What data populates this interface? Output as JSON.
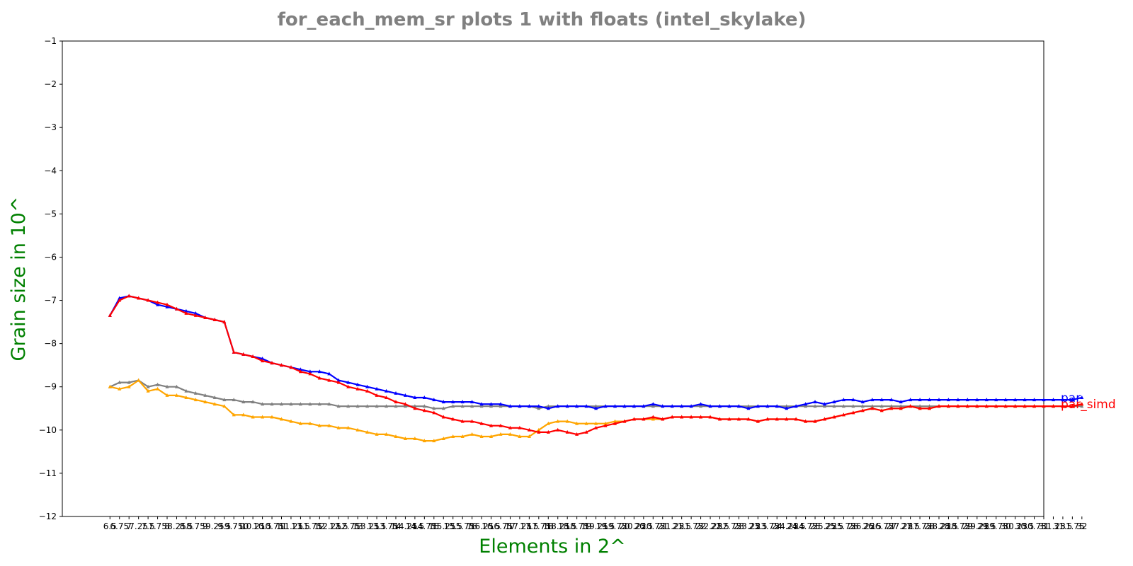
{
  "chart_data": {
    "type": "line",
    "title": "for_each_mem_sr plots 1 with floats  (intel_skylake)",
    "xlabel": "Elements in 2^",
    "ylabel": "Grain size in 10^",
    "ylim": [
      -12,
      -1
    ],
    "yticks": [
      "-1",
      "-2",
      "-3",
      "-4",
      "-5",
      "-6",
      "-7",
      "-8",
      "-9",
      "-10",
      "-11",
      "-12"
    ],
    "xlim": [
      5.25,
      31.0
    ],
    "x_start": 6.5,
    "x_step": 0.25,
    "x_count": 103,
    "grid": false,
    "legend": "right-outside",
    "series": [
      {
        "name": "par",
        "color": "#0000ff",
        "values": [
          -7.35,
          -6.95,
          -6.9,
          -6.95,
          -7.0,
          -7.1,
          -7.15,
          -7.2,
          -7.25,
          -7.3,
          -7.4,
          -7.45,
          -7.5,
          -8.2,
          -8.25,
          -8.3,
          -8.35,
          -8.45,
          -8.5,
          -8.55,
          -8.6,
          -8.65,
          -8.65,
          -8.7,
          -8.85,
          -8.9,
          -8.95,
          -9.0,
          -9.05,
          -9.1,
          -9.15,
          -9.2,
          -9.25,
          -9.25,
          -9.3,
          -9.35,
          -9.35,
          -9.35,
          -9.35,
          -9.4,
          -9.4,
          -9.4,
          -9.45,
          -9.45,
          -9.45,
          -9.45,
          -9.5,
          -9.45,
          -9.45,
          -9.45,
          -9.45,
          -9.5,
          -9.45,
          -9.45,
          -9.45,
          -9.45,
          -9.45,
          -9.4,
          -9.45,
          -9.45,
          -9.45,
          -9.45,
          -9.4,
          -9.45,
          -9.45,
          -9.45,
          -9.45,
          -9.5,
          -9.45,
          -9.45,
          -9.45,
          -9.5,
          -9.45,
          -9.4,
          -9.35,
          -9.4,
          -9.35,
          -9.3,
          -9.3,
          -9.35,
          -9.3,
          -9.3,
          -9.3,
          -9.35,
          -9.3,
          -9.3,
          -9.3,
          -9.3,
          -9.3,
          -9.3,
          -9.3,
          -9.3,
          -9.3,
          -9.3,
          -9.3,
          -9.3,
          -9.3,
          -9.3,
          -9.3,
          -9.3,
          -9.3,
          -9.3,
          -9.25
        ]
      },
      {
        "name": "par_simd",
        "color": "#ff0000",
        "values": [
          -7.35,
          -7.0,
          -6.9,
          -6.95,
          -7.0,
          -7.05,
          -7.1,
          -7.2,
          -7.3,
          -7.35,
          -7.4,
          -7.45,
          -7.5,
          -8.2,
          -8.25,
          -8.3,
          -8.4,
          -8.45,
          -8.5,
          -8.55,
          -8.65,
          -8.7,
          -8.8,
          -8.85,
          -8.9,
          -9.0,
          -9.05,
          -9.1,
          -9.2,
          -9.25,
          -9.35,
          -9.4,
          -9.5,
          -9.55,
          -9.6,
          -9.7,
          -9.75,
          -9.8,
          -9.8,
          -9.85,
          -9.9,
          -9.9,
          -9.95,
          -9.95,
          -10.0,
          -10.05,
          -10.05,
          -10.0,
          -10.05,
          -10.1,
          -10.05,
          -9.95,
          -9.9,
          -9.85,
          -9.8,
          -9.75,
          -9.75,
          -9.7,
          -9.75,
          -9.7,
          -9.7,
          -9.7,
          -9.7,
          -9.7,
          -9.75,
          -9.75,
          -9.75,
          -9.75,
          -9.8,
          -9.75,
          -9.75,
          -9.75,
          -9.75,
          -9.8,
          -9.8,
          -9.75,
          -9.7,
          -9.65,
          -9.6,
          -9.55,
          -9.5,
          -9.55,
          -9.5,
          -9.5,
          -9.45,
          -9.5,
          -9.5,
          -9.45,
          -9.45,
          -9.45,
          -9.45,
          -9.45,
          -9.45,
          -9.45,
          -9.45,
          -9.45,
          -9.45,
          -9.45,
          -9.45,
          -9.45,
          -9.45,
          -9.45,
          -9.4
        ]
      },
      {
        "name": "",
        "color": "#808080",
        "values": [
          -9.0,
          -8.9,
          -8.9,
          -8.85,
          -9.0,
          -8.95,
          -9.0,
          -9.0,
          -9.1,
          -9.15,
          -9.2,
          -9.25,
          -9.3,
          -9.3,
          -9.35,
          -9.35,
          -9.4,
          -9.4,
          -9.4,
          -9.4,
          -9.4,
          -9.4,
          -9.4,
          -9.4,
          -9.45,
          -9.45,
          -9.45,
          -9.45,
          -9.45,
          -9.45,
          -9.45,
          -9.45,
          -9.45,
          -9.45,
          -9.5,
          -9.5,
          -9.45,
          -9.45,
          -9.45,
          -9.45,
          -9.45,
          -9.45,
          -9.45,
          -9.45,
          -9.45,
          -9.5,
          -9.45,
          -9.45,
          -9.45,
          -9.45,
          -9.45,
          -9.45,
          -9.45,
          -9.45,
          -9.45,
          -9.45,
          -9.45,
          -9.45,
          -9.45,
          -9.45,
          -9.45,
          -9.45,
          -9.45,
          -9.45,
          -9.45,
          -9.45,
          -9.45,
          -9.45,
          -9.45,
          -9.45,
          -9.45,
          -9.45,
          -9.45,
          -9.45,
          -9.45,
          -9.45,
          -9.45,
          -9.45,
          -9.45,
          -9.45,
          -9.45,
          -9.45,
          -9.45,
          -9.45,
          -9.45,
          -9.45,
          -9.45,
          -9.45,
          -9.45,
          -9.45,
          -9.45,
          -9.45,
          -9.45,
          -9.45,
          -9.45,
          -9.45,
          -9.45,
          -9.45,
          -9.45,
          -9.45,
          -9.45,
          -9.45,
          -9.45
        ]
      },
      {
        "name": "",
        "color": "#ffa500",
        "values": [
          -9.0,
          -9.05,
          -9.0,
          -8.85,
          -9.1,
          -9.05,
          -9.2,
          -9.2,
          -9.25,
          -9.3,
          -9.35,
          -9.4,
          -9.45,
          -9.65,
          -9.65,
          -9.7,
          -9.7,
          -9.7,
          -9.75,
          -9.8,
          -9.85,
          -9.85,
          -9.9,
          -9.9,
          -9.95,
          -9.95,
          -10.0,
          -10.05,
          -10.1,
          -10.1,
          -10.15,
          -10.2,
          -10.2,
          -10.25,
          -10.25,
          -10.2,
          -10.15,
          -10.15,
          -10.1,
          -10.15,
          -10.15,
          -10.1,
          -10.1,
          -10.15,
          -10.15,
          -10.0,
          -9.85,
          -9.8,
          -9.8,
          -9.85,
          -9.85,
          -9.85,
          -9.85,
          -9.8,
          -9.8,
          -9.75,
          -9.75,
          -9.75,
          -9.75,
          -9.7,
          -9.7,
          -9.7,
          -9.7,
          -9.7,
          -9.75,
          -9.75,
          -9.75,
          -9.75,
          -9.8,
          -9.75,
          -9.75,
          -9.75,
          -9.75,
          -9.8,
          -9.8,
          -9.75,
          -9.7,
          -9.65,
          -9.6,
          -9.55,
          -9.5,
          -9.55,
          -9.5,
          -9.5,
          -9.45,
          -9.5,
          -9.5,
          -9.45,
          -9.45,
          -9.45,
          -9.45,
          -9.45,
          -9.45,
          -9.45,
          -9.45,
          -9.45,
          -9.45,
          -9.45,
          -9.45,
          -9.45,
          -9.45,
          -9.45,
          -9.4
        ]
      }
    ]
  },
  "colors": {
    "title": "#808080",
    "axis_label": "#008000",
    "axes": "#000000"
  }
}
